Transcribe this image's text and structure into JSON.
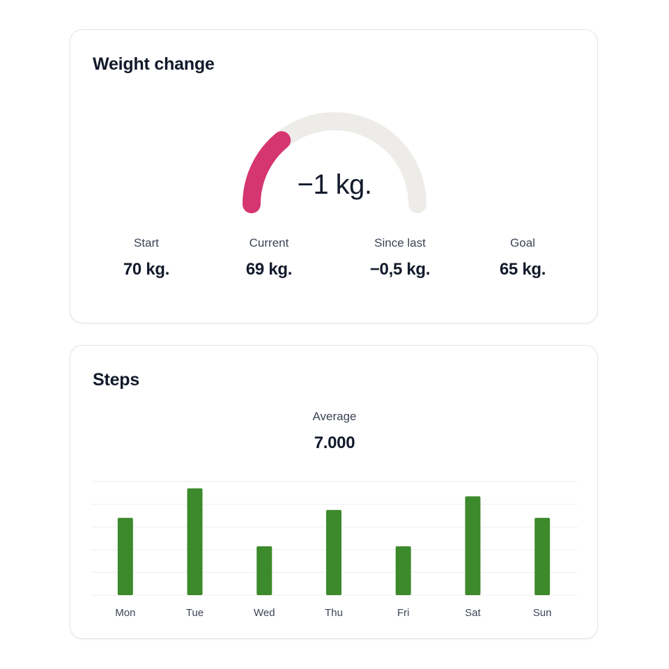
{
  "weight": {
    "title": "Weight change",
    "gauge_value": "−1 kg.",
    "gauge_fraction": 0.28,
    "stats": [
      {
        "label": "Start",
        "value": "70 kg."
      },
      {
        "label": "Current",
        "value": "69 kg."
      },
      {
        "label": "Since last",
        "value": "−0,5 kg."
      },
      {
        "label": "Goal",
        "value": "65 kg."
      }
    ]
  },
  "steps": {
    "title": "Steps",
    "average_label": "Average",
    "average_value": "7.000"
  },
  "colors": {
    "gauge_fill": "#d63670",
    "gauge_track": "#eeece9",
    "bar": "#3d8a2c",
    "grid": "#eeeeee",
    "text": "#121a2b",
    "muted": "#3c4354"
  },
  "chart_data": {
    "type": "bar",
    "categories": [
      "Mon",
      "Tue",
      "Wed",
      "Thu",
      "Fri",
      "Sat",
      "Sun"
    ],
    "values": [
      0.68,
      0.94,
      0.43,
      0.75,
      0.43,
      0.87,
      0.68
    ],
    "ylim": [
      0,
      1
    ],
    "grid": true,
    "gridlines": 6
  }
}
